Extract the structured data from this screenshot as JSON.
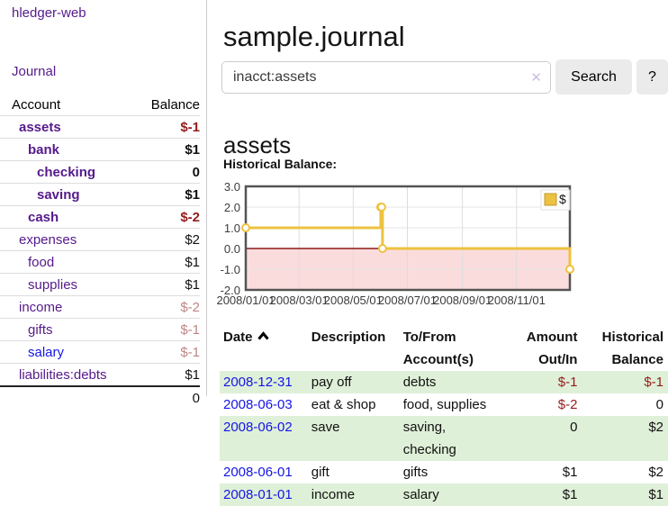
{
  "colors": {
    "link_purple": "#551A8B",
    "link_blue": "#1515e6",
    "negative_strong": "#941c1c",
    "negative_soft": "#c08585",
    "row_green": "#dff0d8",
    "chart_gold": "#EDC240",
    "chart_negative_bg": "#fbdcdc",
    "zero_line": "#8b1a1a",
    "button_gray": "#ebebeb"
  },
  "app_title": "hledger-web",
  "sidebar": {
    "journal_link": "Journal",
    "accounts": {
      "header": {
        "account": "Account",
        "balance": "Balance"
      },
      "rows": [
        {
          "account": "assets",
          "balance": "$-1"
        },
        {
          "account": "bank",
          "balance": "$1"
        },
        {
          "account": "checking",
          "balance": "0"
        },
        {
          "account": "saving",
          "balance": "$1"
        },
        {
          "account": "cash",
          "balance": "$-2"
        },
        {
          "account": "expenses",
          "balance": "$2"
        },
        {
          "account": "food",
          "balance": "$1"
        },
        {
          "account": "supplies",
          "balance": "$1"
        },
        {
          "account": "income",
          "balance": "$-2"
        },
        {
          "account": "gifts",
          "balance": "$-1"
        },
        {
          "account": "salary",
          "balance": "$-1"
        },
        {
          "account": "liabilities:debts",
          "balance": "$1"
        }
      ],
      "total": "0"
    }
  },
  "main": {
    "title": "sample.journal",
    "search": {
      "value": "inacct:assets",
      "clear_label": "✕",
      "search_button": "Search",
      "help_button": "?"
    },
    "section_heading": "assets",
    "chart_title": "Historical Balance:"
  },
  "chart_data": {
    "type": "line",
    "step": true,
    "title": "Historical Balance",
    "xlabel": "",
    "ylabel": "",
    "x_range": [
      "2008-01-01",
      "2008-12-31"
    ],
    "ylim": [
      -2,
      3
    ],
    "y_ticks": [
      3.0,
      2.0,
      1.0,
      0.0,
      -1.0,
      -2.0
    ],
    "x_ticks": [
      "2008/01/01",
      "2008/03/01",
      "2008/05/01",
      "2008/07/01",
      "2008/09/01",
      "2008/11/01"
    ],
    "series": [
      {
        "name": "$",
        "color": "#EDC240",
        "points": [
          [
            "2008-01-01",
            1
          ],
          [
            "2008-06-01",
            2
          ],
          [
            "2008-06-02",
            2
          ],
          [
            "2008-06-03",
            0
          ],
          [
            "2008-12-31",
            -1
          ]
        ]
      }
    ],
    "grid": true,
    "legend_position": "top-right",
    "negative_region_color": "#fbdcdc",
    "zero_line_color": "#8b1a1a"
  },
  "register": {
    "headers": {
      "date": "Date",
      "description": "Description",
      "tofrom": "To/From\nAccount(s)",
      "amount": "Amount\nOut/In",
      "historical": "Historical\nBalance"
    },
    "rows": [
      {
        "date": "2008-12-31",
        "description": "pay off",
        "accounts": "debts",
        "amount": "$-1",
        "balance": "$-1"
      },
      {
        "date": "2008-06-03",
        "description": "eat & shop",
        "accounts": "food, supplies",
        "amount": "$-2",
        "balance": "0"
      },
      {
        "date": "2008-06-02",
        "description": "save",
        "accounts": "saving,\nchecking",
        "amount": "0",
        "balance": "$2"
      },
      {
        "date": "2008-06-01",
        "description": "gift",
        "accounts": "gifts",
        "amount": "$1",
        "balance": "$2"
      },
      {
        "date": "2008-01-01",
        "description": "income",
        "accounts": "salary",
        "amount": "$1",
        "balance": "$1"
      }
    ]
  }
}
